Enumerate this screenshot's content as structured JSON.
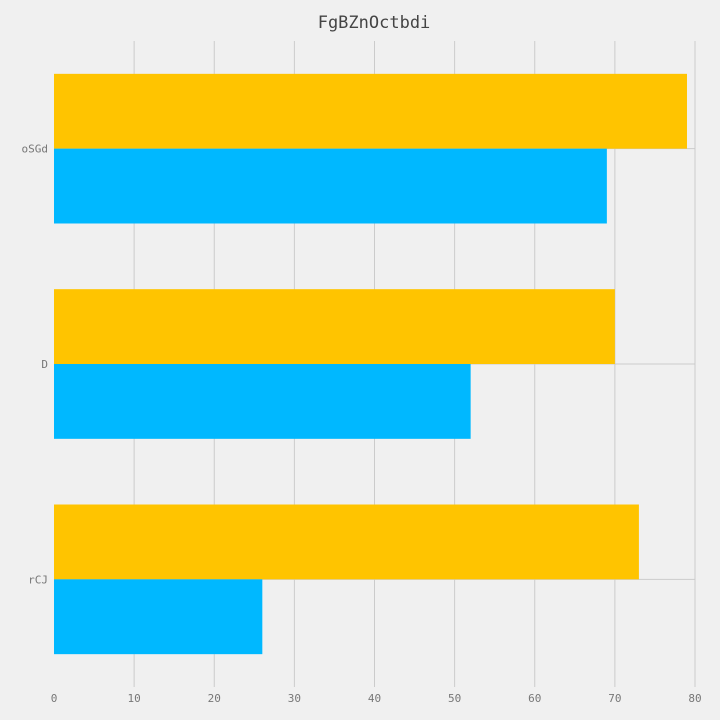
{
  "chart_data": {
    "type": "bar",
    "orientation": "horizontal",
    "title": "FgBZnOctbdi",
    "xlabel": "",
    "ylabel": "",
    "categories": [
      "oSGd",
      "D",
      "rCJ"
    ],
    "series": [
      {
        "color": "#ffc400",
        "values": [
          79,
          70,
          73
        ]
      },
      {
        "color": "#00b8ff",
        "values": [
          69,
          52,
          26
        ]
      }
    ],
    "xlim": [
      0,
      80
    ],
    "xticks": [
      0,
      10,
      20,
      30,
      40,
      50,
      60,
      70,
      80
    ],
    "grid": true,
    "background": "#f0f0f0"
  }
}
